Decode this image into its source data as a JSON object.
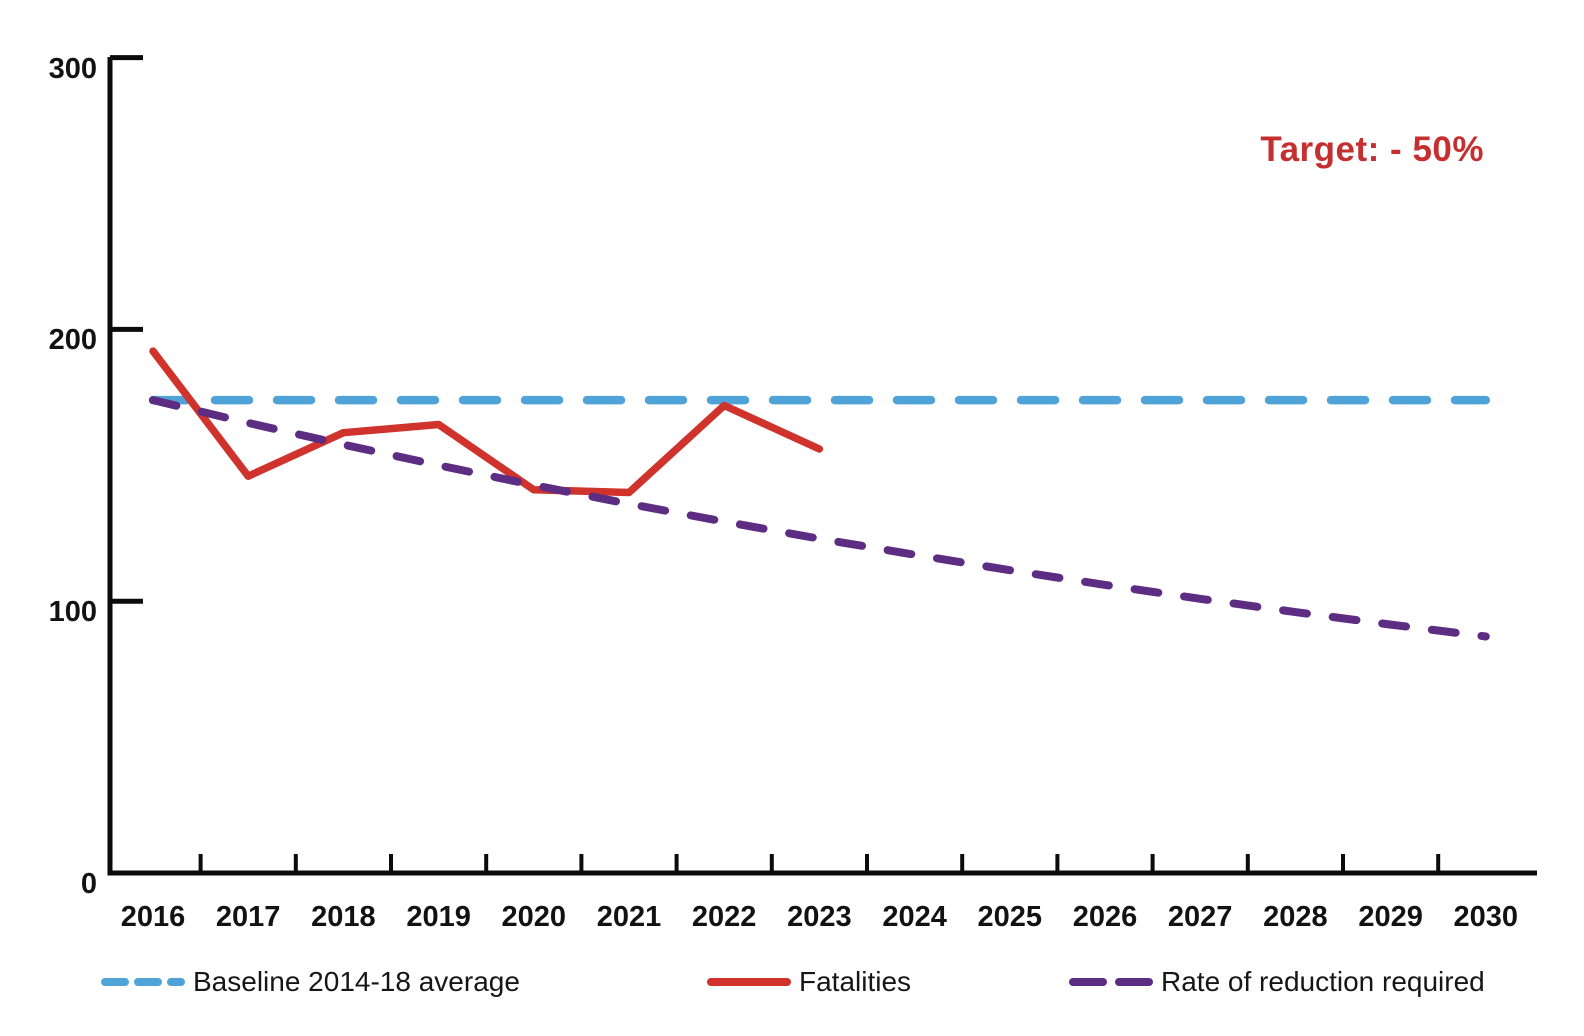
{
  "annotation": {
    "text": "Target: - 50%",
    "color": "#c62f2f"
  },
  "chart_data": {
    "type": "line",
    "title": "",
    "xlabel": "",
    "ylabel": "",
    "x": [
      2016,
      2017,
      2018,
      2019,
      2020,
      2021,
      2022,
      2023,
      2024,
      2025,
      2026,
      2027,
      2028,
      2029,
      2030
    ],
    "y_ticks": [
      0,
      100,
      200,
      300
    ],
    "ylim": [
      0,
      300
    ],
    "grid": false,
    "legend_position": "bottom",
    "annotation": "Target: - 50%",
    "series": [
      {
        "key": "baseline",
        "name": "Baseline 2014-18 average",
        "color": "#4fa3d8",
        "line_style": "dashed",
        "values": [
          174,
          174,
          174,
          174,
          174,
          174,
          174,
          174,
          174,
          174,
          174,
          174,
          174,
          174,
          174
        ]
      },
      {
        "key": "fatalities",
        "name": "Fatalities",
        "color": "#d0322c",
        "line_style": "solid",
        "values": [
          192,
          146,
          162,
          165,
          141,
          140,
          172,
          156
        ]
      },
      {
        "key": "reduction",
        "name": "Rate of reduction required",
        "color": "#5c2d82",
        "line_style": "dashed",
        "values": [
          174,
          165.6,
          157.6,
          150.0,
          142.7,
          135.8,
          129.3,
          123.0,
          117.1,
          111.4,
          106.0,
          100.9,
          96.0,
          91.4,
          87.0
        ]
      }
    ]
  }
}
